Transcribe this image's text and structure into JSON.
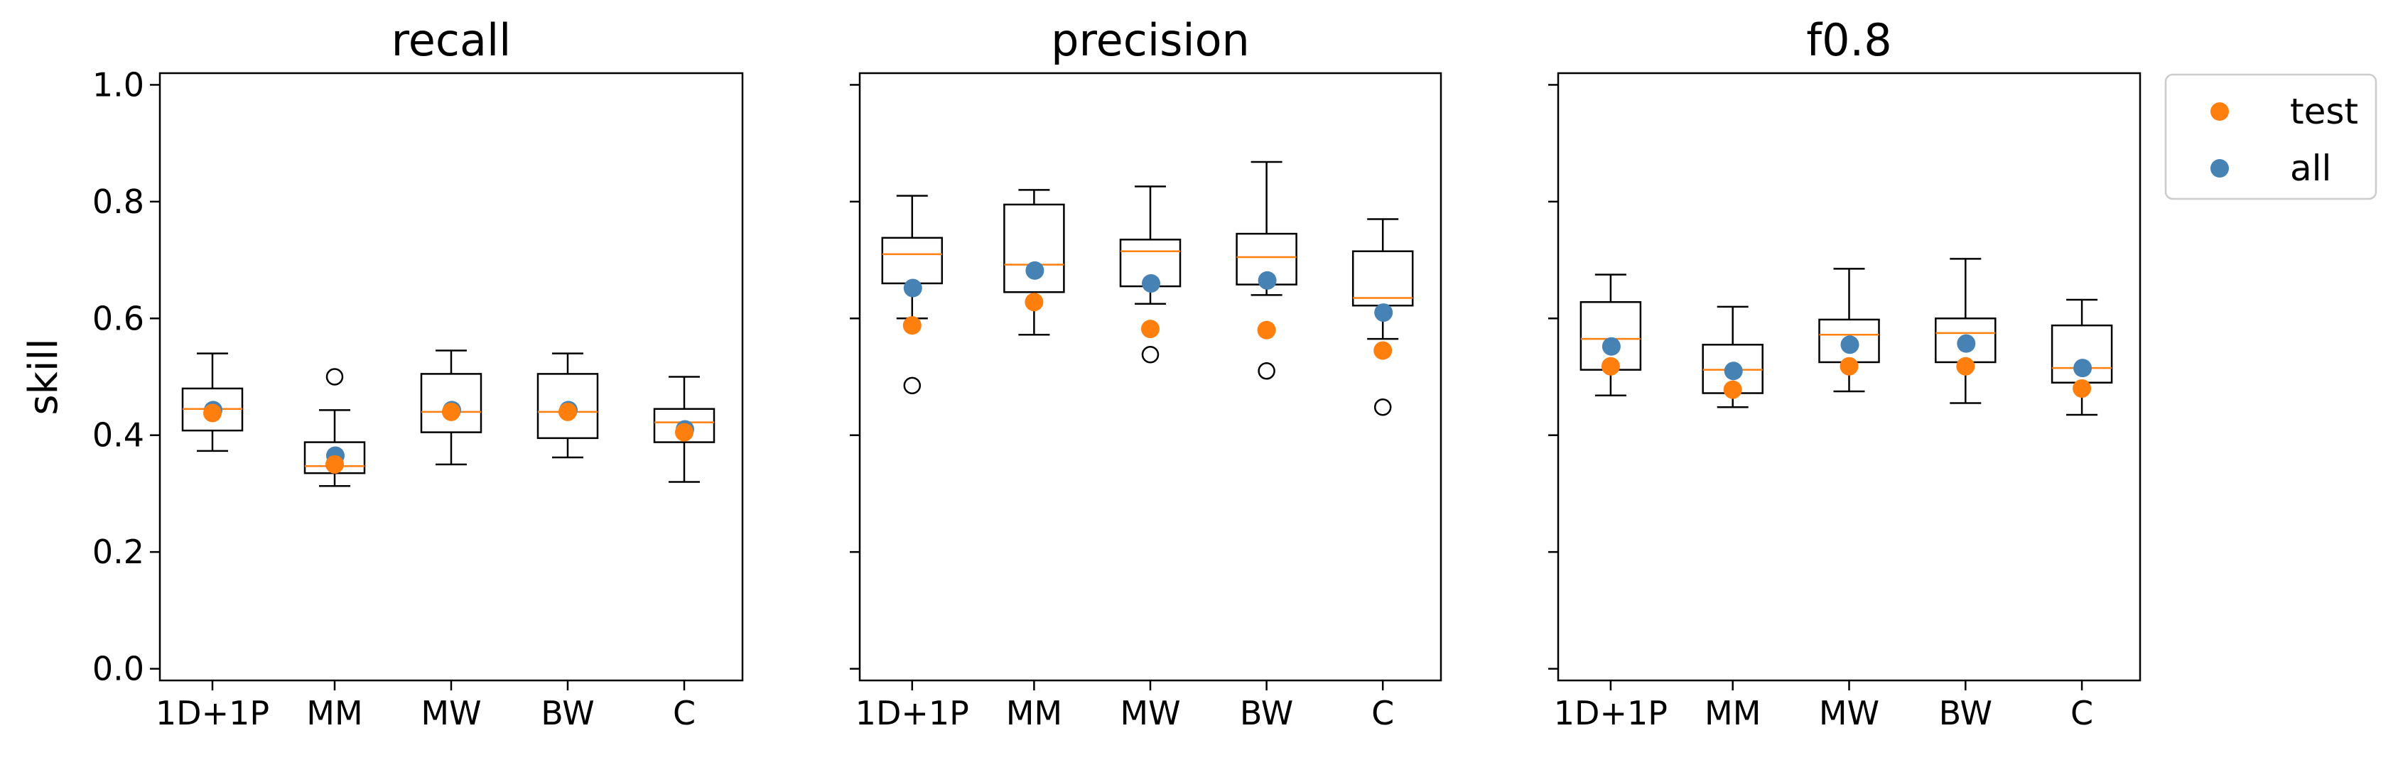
{
  "chart_data": {
    "type": "box",
    "ylabel": "skill",
    "ylim": [
      -0.02,
      1.02
    ],
    "yticks": [
      0.0,
      0.2,
      0.4,
      0.6,
      0.8,
      1.0
    ],
    "ytick_labels": [
      "0.0",
      "0.2",
      "0.4",
      "0.6",
      "0.8",
      "1.0"
    ],
    "categories": [
      "1D+1P",
      "MM",
      "MW",
      "BW",
      "C"
    ],
    "legend": {
      "placement": "outside-top-right",
      "entries": [
        {
          "label": "test",
          "color": "#ff7f0e"
        },
        {
          "label": "all",
          "color": "#4682b4"
        }
      ]
    },
    "colors": {
      "median": "#ff7f0e",
      "test": "#ff7f0e",
      "all": "#4682b4",
      "box": "#000000"
    },
    "panels": [
      {
        "title": "recall",
        "boxes": [
          {
            "category": "1D+1P",
            "whisker_low": 0.373,
            "q1": 0.408,
            "median": 0.445,
            "q3": 0.48,
            "whisker_high": 0.54,
            "outliers": []
          },
          {
            "category": "MM",
            "whisker_low": 0.313,
            "q1": 0.335,
            "median": 0.347,
            "q3": 0.388,
            "whisker_high": 0.443,
            "outliers": [
              0.5
            ]
          },
          {
            "category": "MW",
            "whisker_low": 0.35,
            "q1": 0.405,
            "median": 0.44,
            "q3": 0.505,
            "whisker_high": 0.545,
            "outliers": []
          },
          {
            "category": "BW",
            "whisker_low": 0.362,
            "q1": 0.395,
            "median": 0.44,
            "q3": 0.505,
            "whisker_high": 0.54,
            "outliers": []
          },
          {
            "category": "C",
            "whisker_low": 0.32,
            "q1": 0.388,
            "median": 0.422,
            "q3": 0.445,
            "whisker_high": 0.5,
            "outliers": []
          }
        ],
        "test": [
          0.438,
          0.35,
          0.44,
          0.44,
          0.405
        ],
        "all": [
          0.443,
          0.365,
          0.443,
          0.443,
          0.41
        ]
      },
      {
        "title": "precision",
        "boxes": [
          {
            "category": "1D+1P",
            "whisker_low": 0.6,
            "q1": 0.66,
            "median": 0.71,
            "q3": 0.738,
            "whisker_high": 0.81,
            "outliers": [
              0.485
            ]
          },
          {
            "category": "MM",
            "whisker_low": 0.572,
            "q1": 0.645,
            "median": 0.692,
            "q3": 0.795,
            "whisker_high": 0.82,
            "outliers": []
          },
          {
            "category": "MW",
            "whisker_low": 0.625,
            "q1": 0.655,
            "median": 0.715,
            "q3": 0.735,
            "whisker_high": 0.826,
            "outliers": [
              0.538
            ]
          },
          {
            "category": "BW",
            "whisker_low": 0.64,
            "q1": 0.658,
            "median": 0.705,
            "q3": 0.745,
            "whisker_high": 0.868,
            "outliers": [
              0.51
            ]
          },
          {
            "category": "C",
            "whisker_low": 0.565,
            "q1": 0.622,
            "median": 0.635,
            "q3": 0.715,
            "whisker_high": 0.77,
            "outliers": [
              0.448
            ]
          }
        ],
        "test": [
          0.588,
          0.628,
          0.582,
          0.58,
          0.545
        ],
        "all": [
          0.652,
          0.682,
          0.66,
          0.665,
          0.61
        ]
      },
      {
        "title": "f0.8",
        "boxes": [
          {
            "category": "1D+1P",
            "whisker_low": 0.468,
            "q1": 0.512,
            "median": 0.565,
            "q3": 0.628,
            "whisker_high": 0.675,
            "outliers": []
          },
          {
            "category": "MM",
            "whisker_low": 0.448,
            "q1": 0.472,
            "median": 0.512,
            "q3": 0.555,
            "whisker_high": 0.62,
            "outliers": []
          },
          {
            "category": "MW",
            "whisker_low": 0.475,
            "q1": 0.525,
            "median": 0.572,
            "q3": 0.598,
            "whisker_high": 0.685,
            "outliers": []
          },
          {
            "category": "BW",
            "whisker_low": 0.455,
            "q1": 0.525,
            "median": 0.575,
            "q3": 0.6,
            "whisker_high": 0.702,
            "outliers": []
          },
          {
            "category": "C",
            "whisker_low": 0.435,
            "q1": 0.49,
            "median": 0.515,
            "q3": 0.588,
            "whisker_high": 0.632,
            "outliers": []
          }
        ],
        "test": [
          0.518,
          0.478,
          0.518,
          0.518,
          0.48
        ],
        "all": [
          0.552,
          0.51,
          0.555,
          0.557,
          0.515
        ]
      }
    ]
  }
}
